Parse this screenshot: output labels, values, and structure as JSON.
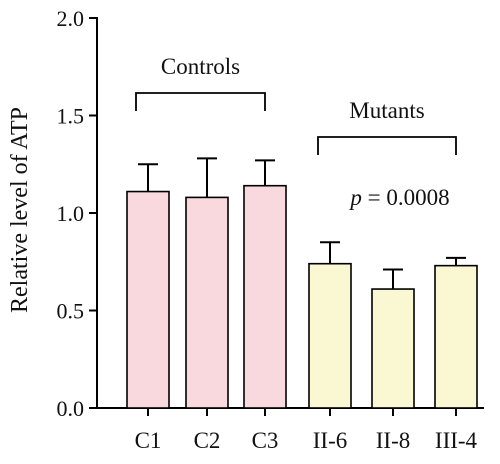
{
  "chart_data": {
    "type": "bar",
    "ylabel": "Relative level of ATP",
    "ylim": [
      0,
      2.0
    ],
    "yticks": [
      "0.0",
      "0.5",
      "1.0",
      "1.5",
      "2.0"
    ],
    "categories": [
      "C1",
      "C2",
      "C3",
      "II-6",
      "II-8",
      "III-4"
    ],
    "values": [
      1.11,
      1.08,
      1.14,
      0.74,
      0.61,
      0.73
    ],
    "errors": [
      0.14,
      0.2,
      0.13,
      0.11,
      0.1,
      0.04
    ],
    "bar_colors": [
      "#f9d9de",
      "#f9d9de",
      "#f9d9de",
      "#faf7d3",
      "#faf7d3",
      "#faf7d3"
    ],
    "groups": [
      {
        "label": "Controls",
        "members": [
          "C1",
          "C2",
          "C3"
        ]
      },
      {
        "label": "Mutants",
        "members": [
          "II-6",
          "II-8",
          "III-4"
        ]
      }
    ],
    "annotation": {
      "prefix": "p",
      "rest": " = 0.0008"
    },
    "grid": false,
    "legend": "none"
  }
}
